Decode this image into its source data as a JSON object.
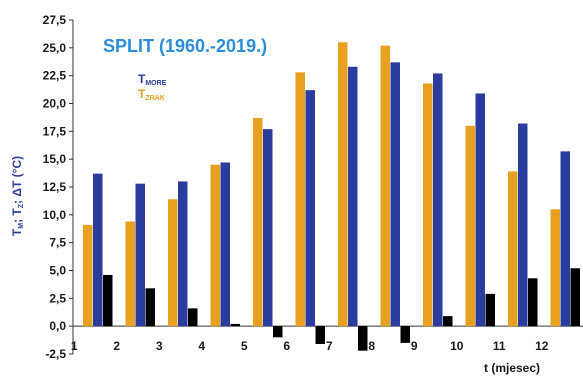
{
  "chart_data": {
    "type": "bar",
    "title": "SPLIT (1960.-2019.)",
    "ylabel": "T_M; T_Z; ΔT (°C)",
    "xlabel": "t (mjesec)",
    "ylim": [
      -2.5,
      27.5
    ],
    "y_ticks": [
      "27,5",
      "25,0",
      "22,5",
      "20,0",
      "17,5",
      "15,0",
      "12,5",
      "10,0",
      "7,5",
      "5,0",
      "2,5",
      "0,0",
      "-2,5"
    ],
    "categories": [
      "1",
      "2",
      "3",
      "4",
      "5",
      "6",
      "7",
      "8",
      "9",
      "10",
      "11",
      "12"
    ],
    "legend_position": "top-left",
    "series": [
      {
        "name": "T_ZRAK",
        "color": "#e8a020",
        "values": [
          9.1,
          9.4,
          11.4,
          14.5,
          18.7,
          22.8,
          25.5,
          25.2,
          21.8,
          18.0,
          13.9,
          10.5
        ]
      },
      {
        "name": "T_MORE",
        "color": "#2a3d9e",
        "values": [
          13.7,
          12.8,
          13.0,
          14.7,
          17.7,
          21.2,
          23.3,
          23.7,
          22.7,
          20.9,
          18.2,
          15.7
        ]
      },
      {
        "name": "ΔT",
        "color": "#000000",
        "values": [
          4.6,
          3.4,
          1.6,
          0.2,
          -1.0,
          -1.6,
          -2.2,
          -1.5,
          0.9,
          2.9,
          4.3,
          5.2
        ]
      }
    ],
    "legend": {
      "more": {
        "main": "T",
        "sub": "MORE",
        "color": "#2a3d9e"
      },
      "zrak": {
        "main": "T",
        "sub": "ZRAK",
        "color": "#e8a020"
      }
    },
    "title_color": "#2a8fd8",
    "ylabel_parts": {
      "t1": "T",
      "s1": "M",
      "sep1": "; T",
      "s2": "Z",
      "rest": "; ΔT (°C)"
    }
  }
}
